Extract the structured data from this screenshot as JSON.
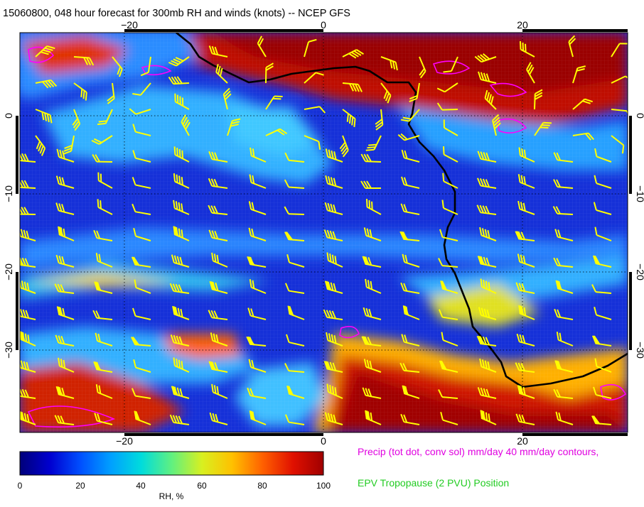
{
  "title": "15060800, 048 hour forecast for 300mb RH and winds (knots) -- NCEP GFS",
  "map": {
    "lon_ticks": [
      "−20",
      "0",
      "20"
    ],
    "lat_ticks": [
      "0",
      "−10",
      "−20",
      "−30"
    ],
    "colors": {
      "frame": "#000000",
      "coast": "#000000",
      "barbs": "#ffff00",
      "precip_contours": "#ff00ff",
      "grid": "#000000"
    }
  },
  "colorbar": {
    "label": "RH, %",
    "ticks": [
      "0",
      "20",
      "40",
      "60",
      "80",
      "100"
    ],
    "range": [
      0,
      100
    ],
    "stops": [
      "#00007a",
      "#0000d0",
      "#0050ff",
      "#00a0ff",
      "#00dcdc",
      "#60f080",
      "#d8f020",
      "#ffc000",
      "#ff6000",
      "#e01000",
      "#a00000"
    ]
  },
  "legend": {
    "precip": "Precip (tot dot, conv sol) mm/day 40 mm/day contours,",
    "epv": "EPV Tropopause (2 PVU) Position"
  }
}
